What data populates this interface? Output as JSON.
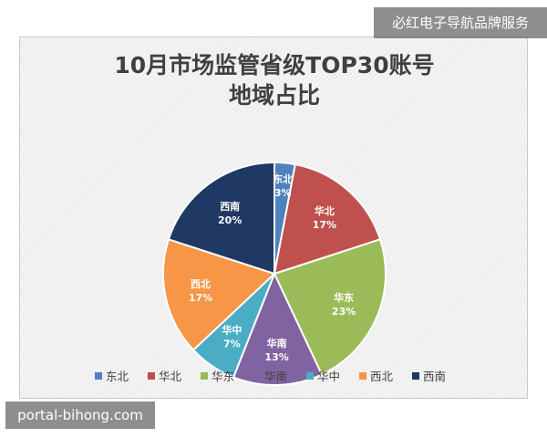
{
  "watermark_top": "必红电子导航品牌服务",
  "watermark_bottom": "portal-bihong.com",
  "chart_data": {
    "type": "pie",
    "title": "10月市场监管省级TOP30账号\n地域占比",
    "categories": [
      "东北",
      "华北",
      "华东",
      "华南",
      "华中",
      "西北",
      "西南"
    ],
    "values": [
      3,
      17,
      23,
      13,
      7,
      17,
      20
    ],
    "value_labels": [
      "3%",
      "17%",
      "23%",
      "13%",
      "7%",
      "17%",
      "20%"
    ],
    "colors": [
      "#4f81bd",
      "#c0504d",
      "#9bbb59",
      "#8064a2",
      "#4bacc6",
      "#f79646",
      "#1f3864"
    ],
    "legend": "bottom",
    "legend_entries": [
      "东北",
      "华北",
      "华东",
      "华南",
      "华中",
      "西北",
      "西南"
    ]
  }
}
